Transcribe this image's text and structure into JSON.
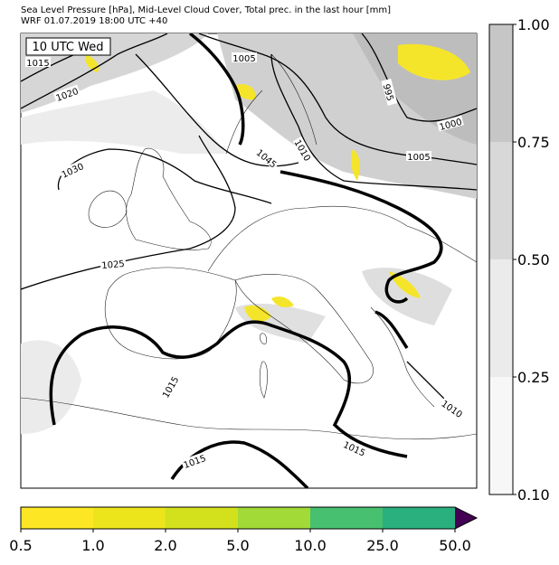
{
  "header": {
    "title": "Sea Level Pressure [hPa], Mid-Level Cloud Cover, Total prec. in the last hour [mm]",
    "subtitle": "WRF 01.07.2019 18:00 UTC +40"
  },
  "map": {
    "time_label": "10 UTC Wed",
    "contour_labels": [
      "1015",
      "1020",
      "1030",
      "1025",
      "1005",
      "995",
      "1000",
      "1005",
      "1010",
      "1045",
      "1015",
      "1015",
      "1015",
      "1010"
    ]
  },
  "cloud_colorbar": {
    "ticks": [
      "1.00",
      "0.75",
      "0.50",
      "0.25",
      "0.10"
    ],
    "colors": [
      "#c6c6c6",
      "#d8d8d8",
      "#ebebeb",
      "#f7f7f7"
    ]
  },
  "precip_colorbar": {
    "ticks": [
      "0.5",
      "1.0",
      "2.0",
      "5.0",
      "10.0",
      "25.0",
      "50.0"
    ],
    "colors": [
      "#fde725",
      "#ece51b",
      "#d3e01c",
      "#a2da37",
      "#47c06f",
      "#2ab07f",
      "#3b528b"
    ],
    "over_color": "#440154"
  }
}
